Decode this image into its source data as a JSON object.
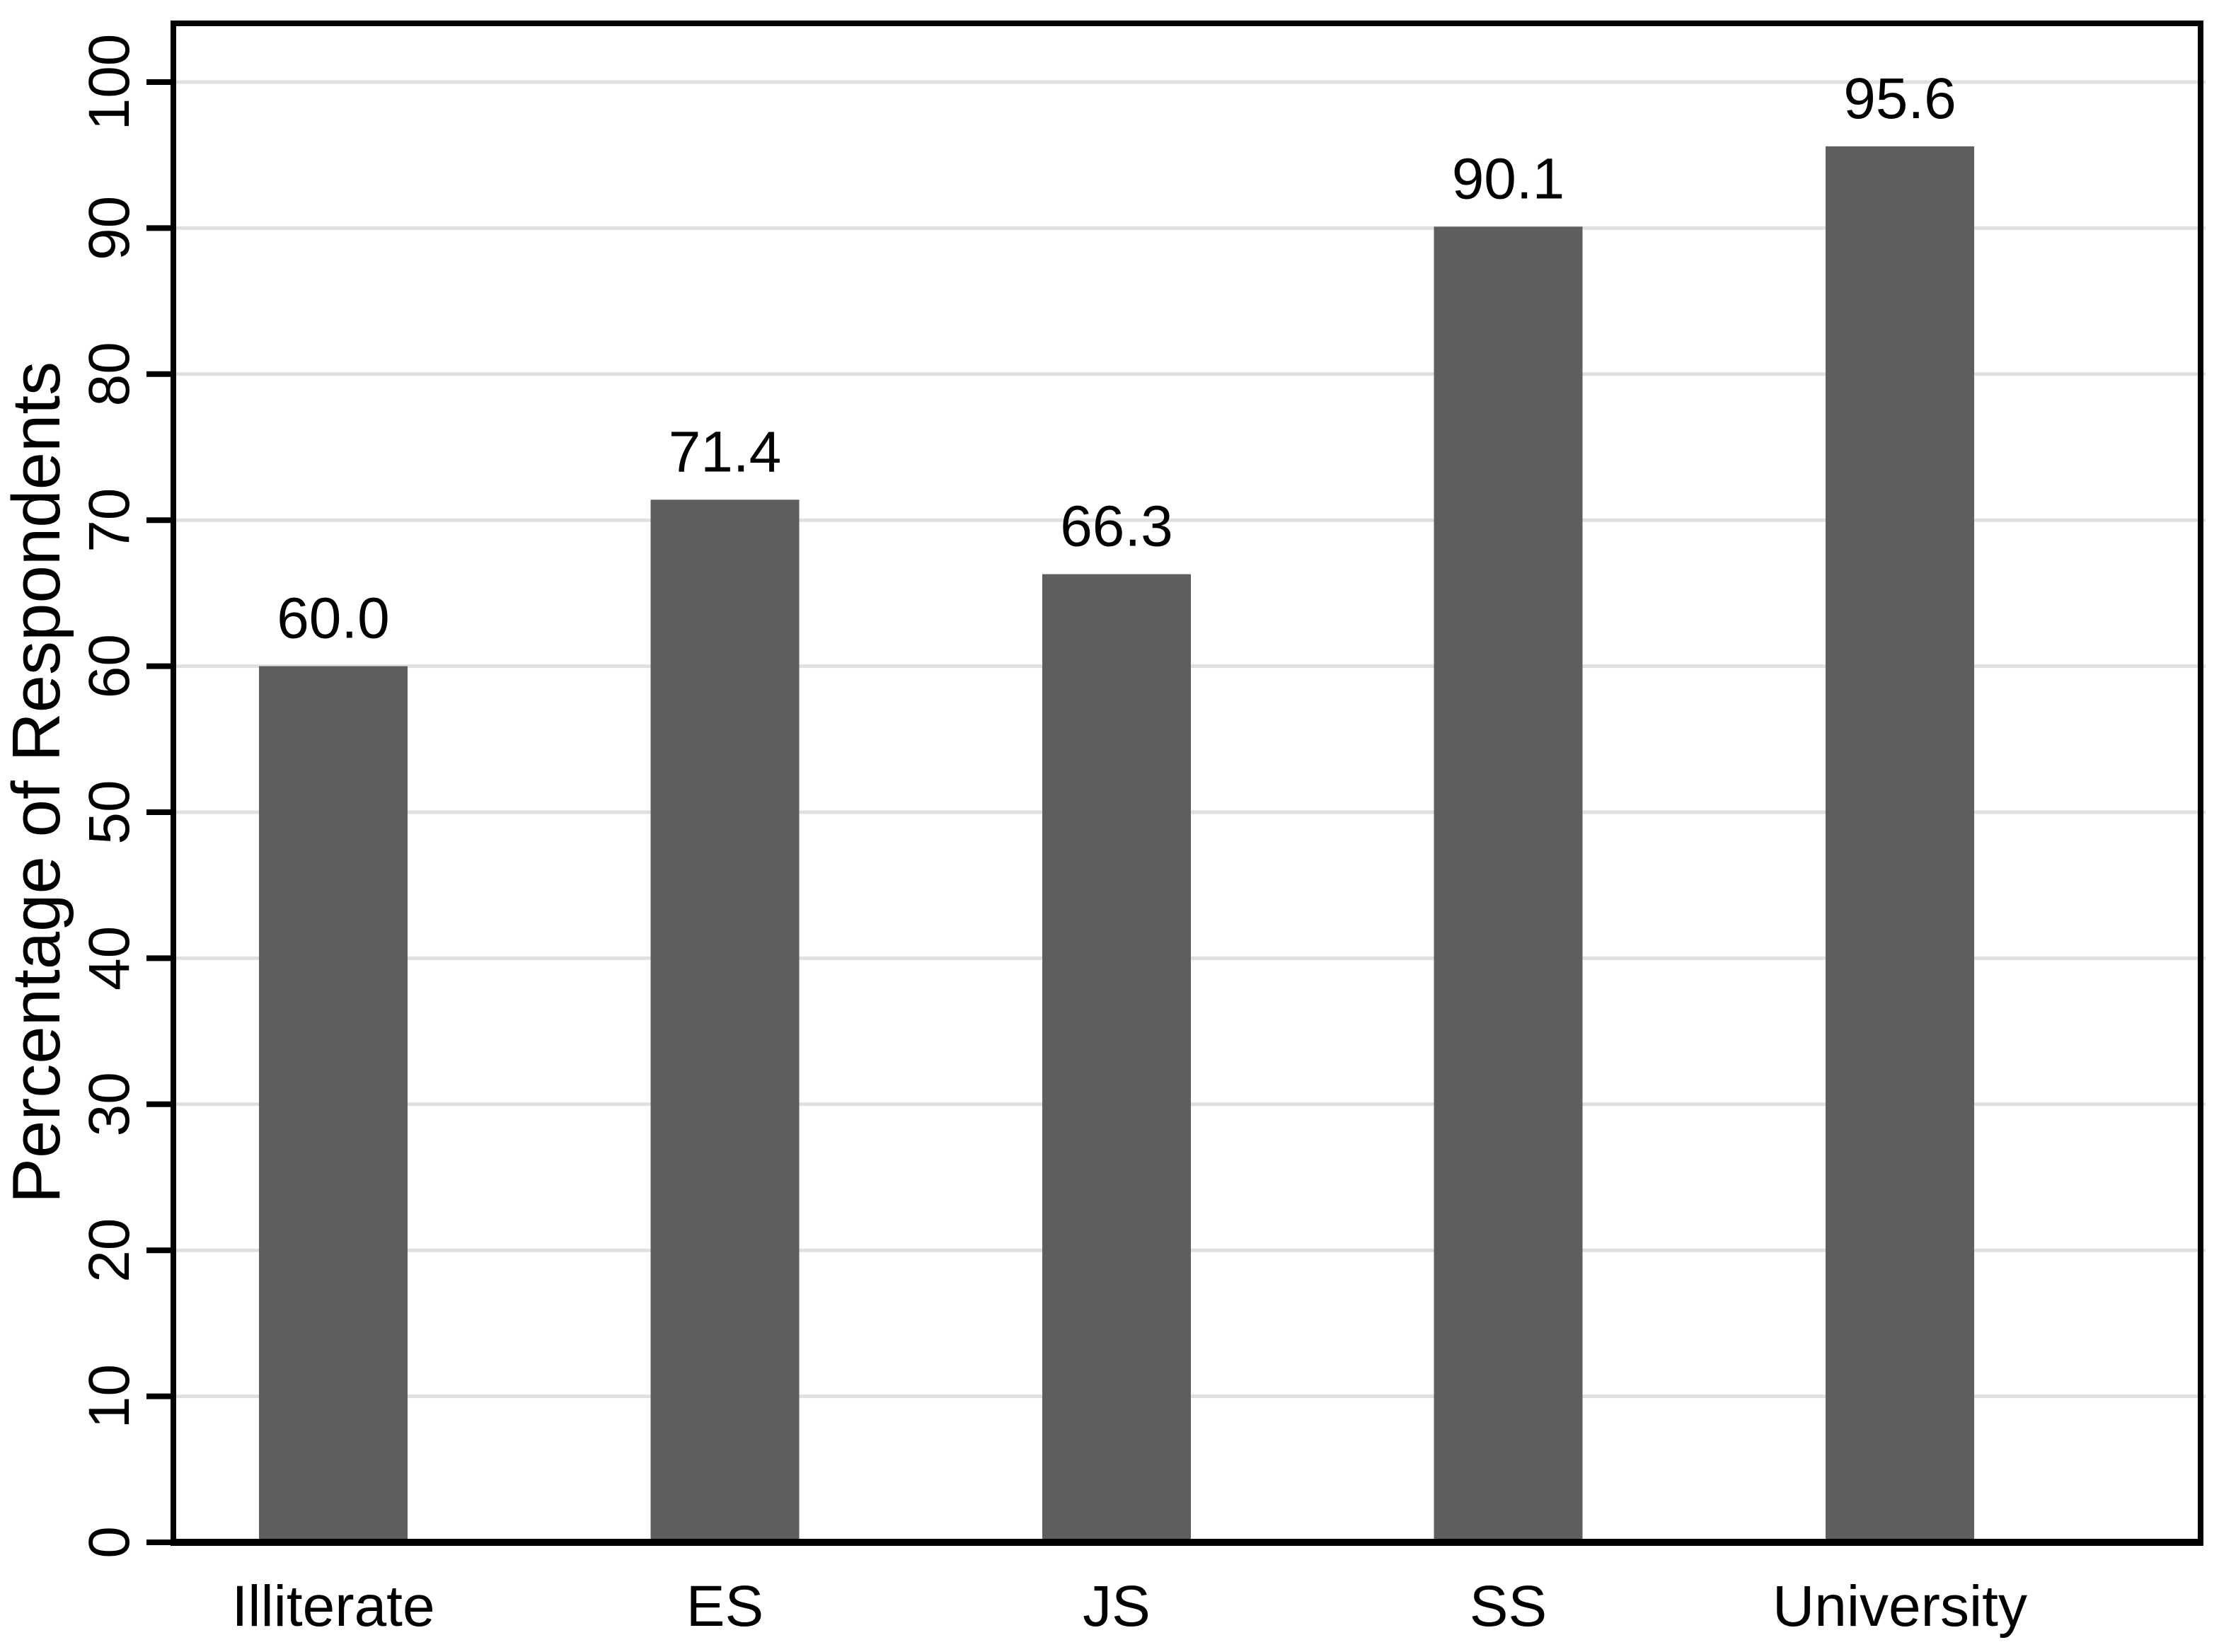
{
  "chart_data": {
    "type": "bar",
    "categories": [
      "Illiterate",
      "ES",
      "JS",
      "SS",
      "University"
    ],
    "values": [
      60.0,
      71.4,
      66.3,
      90.1,
      95.6
    ],
    "value_labels": [
      "60.0",
      "71.4",
      "66.3",
      "90.1",
      "95.6"
    ],
    "series_name": "Percentage of Respondents",
    "title": "",
    "xlabel": "",
    "ylabel": "Percentage of Respondents",
    "ylim": [
      0,
      104
    ],
    "yticks": [
      0,
      10,
      20,
      30,
      40,
      50,
      60,
      70,
      80,
      90,
      100
    ],
    "ytick_labels": [
      "0",
      "10",
      "20",
      "30",
      "40",
      "50",
      "60",
      "70",
      "80",
      "90",
      "100"
    ],
    "grid": "horizontal",
    "legend": "none",
    "colors": {
      "bar": "#5e5e5e",
      "grid": "#e0e0e0",
      "axis": "#000000",
      "text": "#000000",
      "background": "#ffffff"
    }
  }
}
